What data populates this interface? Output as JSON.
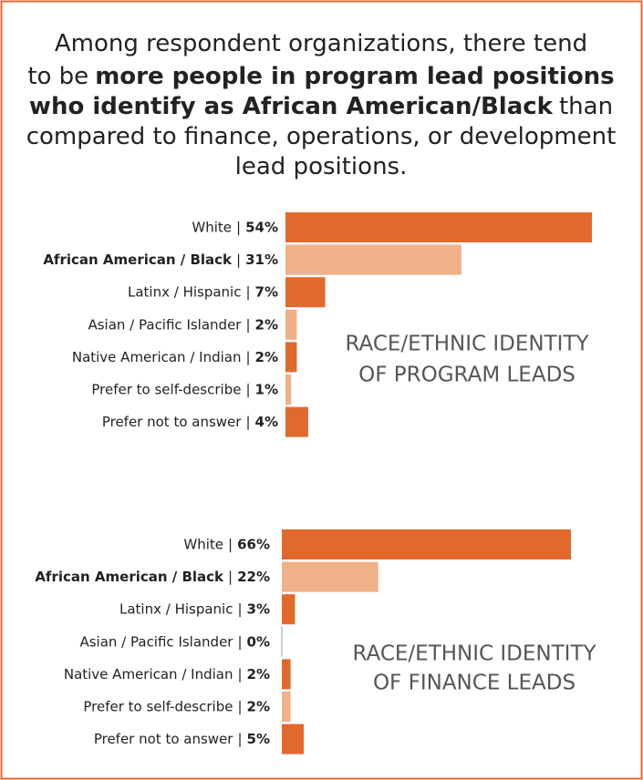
{
  "heading": [
    [
      {
        "text": "Among respondent organizations, there tend",
        "bold": false
      }
    ],
    [
      {
        "text": "to be",
        "bold": false
      },
      {
        "text": "more people in program lead positions",
        "bold": true
      }
    ],
    [
      {
        "text": "who identify as African American/Black",
        "bold": true
      },
      {
        "text": "than",
        "bold": false
      }
    ],
    [
      {
        "text": "compared to finance, operations, or development",
        "bold": false
      }
    ],
    [
      {
        "text": "lead positions.",
        "bold": false
      }
    ]
  ],
  "chart_data": [
    {
      "type": "hbar",
      "annotation": [
        "RACE/ETHNIC IDENTITY",
        "OF PROGRAM LEADS"
      ],
      "separator": "|",
      "categories": [
        "White",
        "African American / Black",
        "Latinx / Hispanic",
        "Asian / Pacific Islander",
        "Native American / Indian",
        "Prefer to self-describe",
        "Prefer not to answer"
      ],
      "values": [
        54,
        31,
        7,
        2,
        2,
        1,
        4
      ],
      "value_labels": [
        "54%",
        "31%",
        "7%",
        "2%",
        "2%",
        "1%",
        "4%"
      ],
      "colors": [
        "#e2692c",
        "#f0b088",
        "#e2692c",
        "#f0b088",
        "#e2692c",
        "#f0b088",
        "#e2692c"
      ],
      "bold_index": 1
    },
    {
      "type": "hbar",
      "annotation": [
        "RACE/ETHNIC IDENTITY",
        "OF FINANCE LEADS"
      ],
      "separator": "|",
      "categories": [
        "White",
        "African American / Black",
        "Latinx / Hispanic",
        "Asian / Pacific Islander",
        "Native American / Indian",
        "Prefer to self-describe",
        "Prefer not to answer"
      ],
      "values": [
        66,
        22,
        3,
        0,
        2,
        2,
        5
      ],
      "value_labels": [
        "66%",
        "22%",
        "3%",
        "0%",
        "2%",
        "2%",
        "5%"
      ],
      "colors": [
        "#e2692c",
        "#f0b088",
        "#e2692c",
        "#f0b088",
        "#e2692c",
        "#f0b088",
        "#e2692c"
      ],
      "bold_index": 1
    }
  ]
}
